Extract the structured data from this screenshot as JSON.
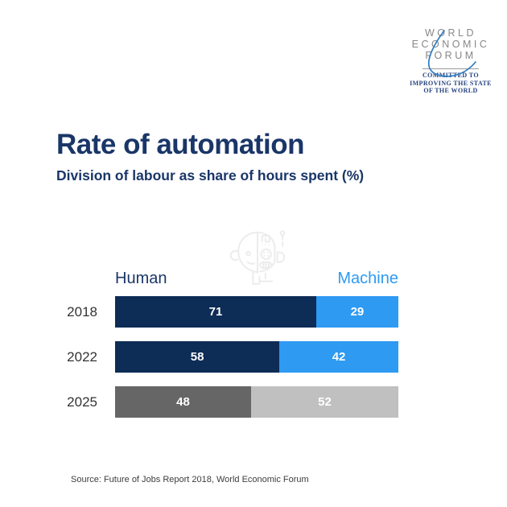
{
  "logo": {
    "lines": [
      "WORLD",
      "ECONOMIC",
      "FORUM"
    ],
    "tagline": [
      "COMMITTED TO",
      "IMPROVING THE STATE",
      "OF THE WORLD"
    ],
    "text_color": "#87888a",
    "tagline_color": "#24427f",
    "arc_color": "#2e7cc1"
  },
  "header": {
    "title": "Rate of automation",
    "subtitle": "Division of labour as share of hours spent (%)",
    "title_color": "#1a3668"
  },
  "watermark": {
    "icon": "half-human-half-robot-head-icon",
    "color": "#ececec"
  },
  "chart_data": {
    "type": "bar",
    "subtype": "horizontal-stacked-100",
    "title": "Rate of automation",
    "subtitle": "Division of labour as share of hours spent (%)",
    "categories": [
      "2018",
      "2022",
      "2025"
    ],
    "series": [
      {
        "name": "Human",
        "values": [
          71,
          58,
          48
        ]
      },
      {
        "name": "Machine",
        "values": [
          29,
          42,
          52
        ]
      }
    ],
    "row_colors": [
      [
        "#0d2c56",
        "#2e9af2"
      ],
      [
        "#0d2c56",
        "#2e9af2"
      ],
      [
        "#666666",
        "#c0c0c0"
      ]
    ],
    "legend": {
      "human_label": "Human",
      "machine_label": "Machine",
      "human_color": "#1a3668",
      "machine_color": "#2e9af2"
    },
    "value_label_color": "#ffffff",
    "xlim": [
      0,
      100
    ],
    "grid": false,
    "legend_position": "above-bars"
  },
  "source": {
    "text": "Source: Future of Jobs Report 2018, World Economic Forum"
  }
}
